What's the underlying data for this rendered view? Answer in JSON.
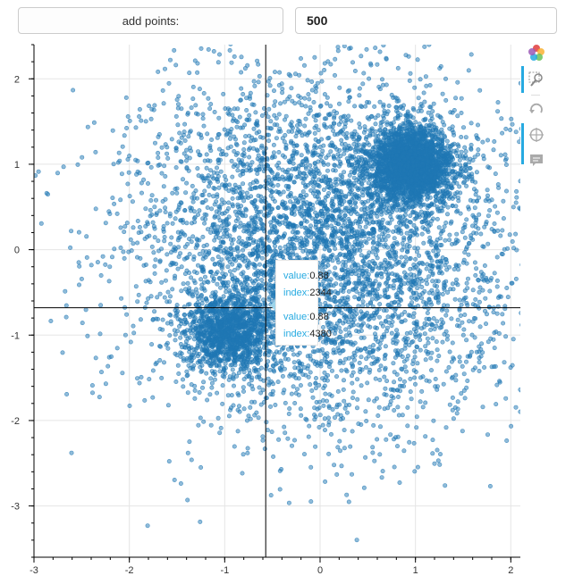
{
  "controls": {
    "add_button_label": "add points:",
    "points_input_value": "500"
  },
  "toolbar": {
    "tools": [
      "bokeh-logo-icon",
      "box-zoom-icon",
      "reset-icon",
      "crosshair-icon",
      "hover-icon"
    ]
  },
  "tooltip": {
    "entries": [
      {
        "value_key": "value:",
        "value": "0.88",
        "index_key": "index:",
        "index": "2344"
      },
      {
        "value_key": "value:",
        "value": "0.88",
        "index_key": "index:",
        "index": "4380"
      }
    ]
  },
  "colors": {
    "points": "#1f77b4",
    "accent": "#26aae1",
    "crosshair": "#000000",
    "grid": "#e5e5e5"
  },
  "chart_data": {
    "type": "scatter",
    "title": "",
    "xlabel": "",
    "ylabel": "",
    "xlim": [
      -3,
      2.1
    ],
    "ylim": [
      -3.6,
      2.4
    ],
    "x_ticks": [
      "-3",
      "-2",
      "-1",
      "0",
      "1",
      "2"
    ],
    "y_ticks": [
      "2",
      "1",
      "0",
      "-1",
      "-2",
      "-3"
    ],
    "grid": true,
    "crosshair": {
      "x": -0.57,
      "y": -0.68
    },
    "clusters": [
      {
        "center": [
          0.95,
          1.0
        ],
        "sigma": 0.22,
        "approx_points": 2500
      },
      {
        "center": [
          -0.95,
          -0.95
        ],
        "sigma": 0.22,
        "approx_points": 1200
      },
      {
        "center": [
          0.0,
          0.0
        ],
        "sigma": 1.0,
        "approx_points": 5000
      }
    ],
    "highlighted_points": [
      {
        "index": 2344,
        "value": 0.88
      },
      {
        "index": 4380,
        "value": 0.88
      }
    ]
  }
}
